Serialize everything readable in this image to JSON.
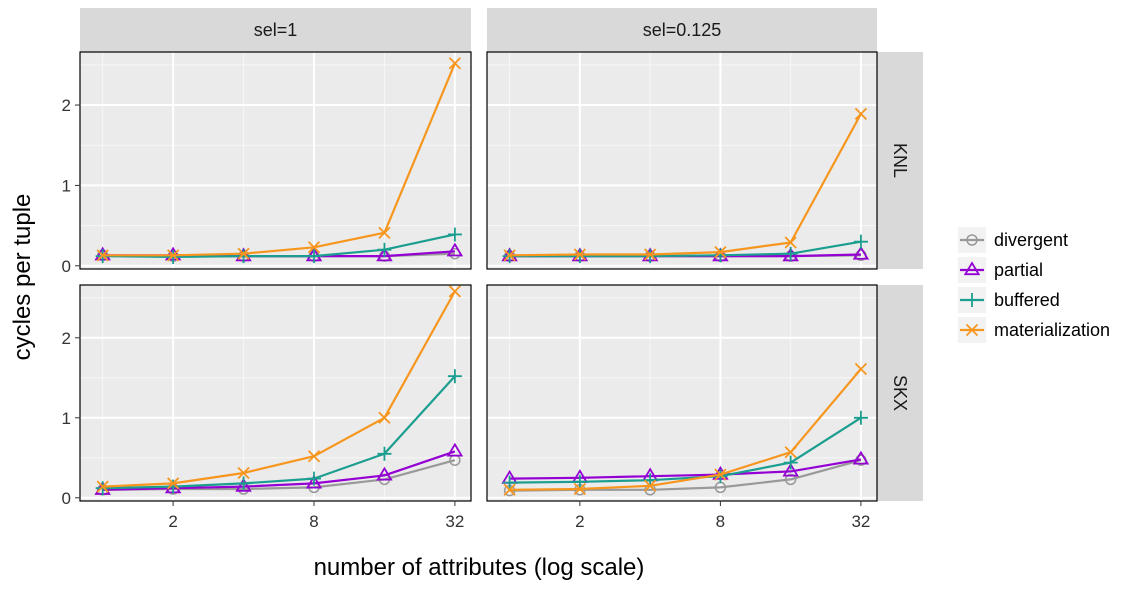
{
  "chart_data": {
    "type": "line",
    "xlabel": "number of attributes (log scale)",
    "ylabel": "cycles per tuple",
    "x_scale": "log2",
    "x": [
      1,
      2,
      4,
      8,
      16,
      32
    ],
    "x_ticks": [
      2,
      8,
      32
    ],
    "y_ticks": [
      0,
      1,
      2
    ],
    "ylim": [
      0,
      2.6
    ],
    "grid": true,
    "legend_position": "right",
    "col_facets": [
      "sel=1",
      "sel=0.125"
    ],
    "row_facets": [
      "KNL",
      "SKX"
    ],
    "series_styles": [
      {
        "name": "divergent",
        "color": "#999999",
        "marker": "circle"
      },
      {
        "name": "partial",
        "color": "#9400d3",
        "marker": "triangle"
      },
      {
        "name": "buffered",
        "color": "#1b9e8f",
        "marker": "plus"
      },
      {
        "name": "materialization",
        "color": "#f7961e",
        "marker": "x"
      }
    ],
    "panels": [
      {
        "row": "KNL",
        "col": "sel=1",
        "series": [
          {
            "name": "divergent",
            "values": [
              0.13,
              0.12,
              0.12,
              0.12,
              0.12,
              0.15
            ]
          },
          {
            "name": "partial",
            "values": [
              0.13,
              0.13,
              0.12,
              0.12,
              0.12,
              0.18
            ]
          },
          {
            "name": "buffered",
            "values": [
              0.12,
              0.11,
              0.12,
              0.12,
              0.2,
              0.39
            ]
          },
          {
            "name": "materialization",
            "values": [
              0.13,
              0.13,
              0.15,
              0.23,
              0.41,
              2.52
            ]
          }
        ]
      },
      {
        "row": "KNL",
        "col": "sel=0.125",
        "series": [
          {
            "name": "divergent",
            "values": [
              0.12,
              0.12,
              0.12,
              0.12,
              0.12,
              0.13
            ]
          },
          {
            "name": "partial",
            "values": [
              0.12,
              0.12,
              0.12,
              0.12,
              0.12,
              0.14
            ]
          },
          {
            "name": "buffered",
            "values": [
              0.12,
              0.12,
              0.12,
              0.13,
              0.15,
              0.3
            ]
          },
          {
            "name": "materialization",
            "values": [
              0.13,
              0.14,
              0.14,
              0.17,
              0.29,
              1.89
            ]
          }
        ]
      },
      {
        "row": "SKX",
        "col": "sel=1",
        "series": [
          {
            "name": "divergent",
            "values": [
              0.1,
              0.11,
              0.11,
              0.13,
              0.23,
              0.47
            ]
          },
          {
            "name": "partial",
            "values": [
              0.1,
              0.12,
              0.14,
              0.18,
              0.28,
              0.58
            ]
          },
          {
            "name": "buffered",
            "values": [
              0.12,
              0.14,
              0.18,
              0.24,
              0.55,
              1.52
            ]
          },
          {
            "name": "materialization",
            "values": [
              0.14,
              0.18,
              0.31,
              0.52,
              1.0,
              2.58
            ]
          }
        ]
      },
      {
        "row": "SKX",
        "col": "sel=0.125",
        "series": [
          {
            "name": "divergent",
            "values": [
              0.09,
              0.1,
              0.1,
              0.13,
              0.23,
              0.47
            ]
          },
          {
            "name": "partial",
            "values": [
              0.24,
              0.25,
              0.27,
              0.29,
              0.33,
              0.48
            ]
          },
          {
            "name": "buffered",
            "values": [
              0.19,
              0.2,
              0.22,
              0.27,
              0.44,
              1.0
            ]
          },
          {
            "name": "materialization",
            "values": [
              0.1,
              0.11,
              0.15,
              0.29,
              0.57,
              1.61
            ]
          }
        ]
      }
    ]
  }
}
